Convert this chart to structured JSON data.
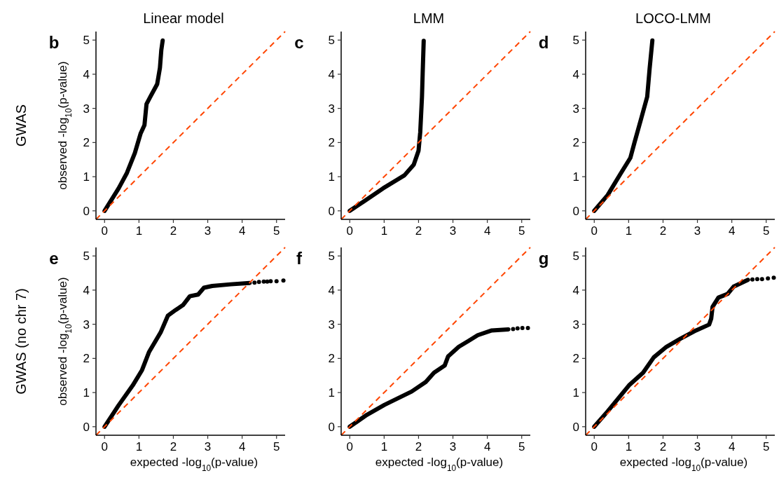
{
  "chart_data": [
    {
      "type": "line",
      "title": "Linear model",
      "ylabel": "observed -log$_{10}$(p-value)",
      "annotations": [
        "b",
        "GWAS"
      ],
      "xlim": [
        -0.25,
        5.25
      ],
      "ylim": [
        -0.25,
        5.25
      ],
      "xticks": [
        0,
        1,
        2,
        3,
        4,
        5
      ],
      "yticks": [
        0,
        1,
        2,
        3,
        4,
        5
      ],
      "series": [
        {
          "color": "#000000",
          "x": [
            0,
            0.41,
            0.65,
            0.88,
            1.05,
            1.16,
            1.22,
            1.33,
            1.53,
            1.61,
            1.65,
            1.69
          ],
          "values": [
            0,
            0.66,
            1.11,
            1.69,
            2.27,
            2.51,
            3.13,
            3.34,
            3.71,
            4.19,
            4.71,
            4.99
          ]
        },
        {
          "color": "#ff4500",
          "line_style": "dashed",
          "x": [
            -0.25,
            5.25
          ],
          "values": [
            -0.25,
            5.25
          ]
        }
      ]
    },
    {
      "type": "line",
      "title": "LMM",
      "annotations": [
        "c"
      ],
      "xlim": [
        -0.25,
        5.25
      ],
      "ylim": [
        -0.25,
        5.25
      ],
      "xticks": [
        0,
        1,
        2,
        3,
        4,
        5
      ],
      "yticks": [
        0,
        1,
        2,
        3,
        4,
        5
      ],
      "series": [
        {
          "color": "#000000",
          "x": [
            0,
            0.43,
            0.97,
            1.59,
            1.86,
            2.0,
            2.05,
            2.1,
            2.12,
            2.15
          ],
          "values": [
            0,
            0.29,
            0.66,
            1.04,
            1.35,
            1.76,
            2.31,
            3.34,
            4.02,
            4.98
          ]
        },
        {
          "color": "#ff4500",
          "line_style": "dashed",
          "x": [
            -0.25,
            5.25
          ],
          "values": [
            -0.25,
            5.25
          ]
        }
      ]
    },
    {
      "type": "line",
      "title": "LOCO-LMM",
      "annotations": [
        "d"
      ],
      "xlim": [
        -0.25,
        5.25
      ],
      "ylim": [
        -0.25,
        5.25
      ],
      "xticks": [
        0,
        1,
        2,
        3,
        4,
        5
      ],
      "yticks": [
        0,
        1,
        2,
        3,
        4,
        5
      ],
      "series": [
        {
          "color": "#000000",
          "x": [
            0,
            0.39,
            0.76,
            1.05,
            1.17,
            1.37,
            1.54,
            1.61,
            1.69
          ],
          "values": [
            0,
            0.46,
            1.08,
            1.55,
            2.0,
            2.72,
            3.34,
            4.16,
            4.99
          ]
        },
        {
          "color": "#ff4500",
          "line_style": "dashed",
          "x": [
            -0.25,
            5.25
          ],
          "values": [
            -0.25,
            5.25
          ]
        }
      ]
    },
    {
      "type": "line",
      "xlabel": "expected -log$_{10}$(p-value)",
      "ylabel": "observed -log$_{10}$(p-value)",
      "annotations": [
        "e",
        "GWAS (no chr 7)"
      ],
      "xlim": [
        -0.25,
        5.25
      ],
      "ylim": [
        -0.25,
        5.25
      ],
      "xticks": [
        0,
        1,
        2,
        3,
        4,
        5
      ],
      "yticks": [
        0,
        1,
        2,
        3,
        4,
        5
      ],
      "series": [
        {
          "color": "#000000",
          "x": [
            0,
            0.41,
            0.82,
            1.09,
            1.29,
            1.63,
            1.84,
            2.07,
            2.28,
            2.48,
            2.72,
            2.89,
            3.13,
            3.67,
            4.22
          ],
          "values": [
            0,
            0.63,
            1.21,
            1.66,
            2.18,
            2.76,
            3.25,
            3.42,
            3.56,
            3.82,
            3.87,
            4.07,
            4.12,
            4.17,
            4.21
          ]
        },
        {
          "type": "scatter",
          "color": "#000000",
          "marker": "circle",
          "x": [
            4.36,
            4.49,
            4.63,
            4.73,
            4.83,
            5.0,
            5.2
          ],
          "values": [
            4.22,
            4.24,
            4.25,
            4.25,
            4.26,
            4.26,
            4.28
          ]
        },
        {
          "color": "#ff4500",
          "line_style": "dashed",
          "x": [
            -0.25,
            5.25
          ],
          "values": [
            -0.25,
            5.25
          ]
        }
      ]
    },
    {
      "type": "line",
      "xlabel": "expected -log$_{10}$(p-value)",
      "annotations": [
        "f"
      ],
      "xlim": [
        -0.25,
        5.25
      ],
      "ylim": [
        -0.25,
        5.25
      ],
      "xticks": [
        0,
        1,
        2,
        3,
        4,
        5
      ],
      "yticks": [
        0,
        1,
        2,
        3,
        4,
        5
      ],
      "series": [
        {
          "color": "#000000",
          "x": [
            0,
            0.5,
            1.01,
            1.8,
            2.21,
            2.45,
            2.76,
            2.86,
            3.17,
            3.45,
            3.72,
            4.13,
            4.61
          ],
          "values": [
            0,
            0.35,
            0.64,
            1.03,
            1.31,
            1.58,
            1.79,
            2.06,
            2.34,
            2.51,
            2.68,
            2.82,
            2.85
          ]
        },
        {
          "type": "scatter",
          "color": "#000000",
          "marker": "circle",
          "x": [
            4.75,
            4.88,
            5.02,
            5.18
          ],
          "values": [
            2.86,
            2.88,
            2.89,
            2.89
          ]
        },
        {
          "color": "#ff4500",
          "line_style": "dashed",
          "x": [
            -0.25,
            5.25
          ],
          "values": [
            -0.25,
            5.25
          ]
        }
      ]
    },
    {
      "type": "line",
      "xlabel": "expected -log$_{10}$(p-value)",
      "annotations": [
        "g"
      ],
      "xlim": [
        -0.25,
        5.25
      ],
      "ylim": [
        -0.25,
        5.25
      ],
      "xticks": [
        0,
        1,
        2,
        3,
        4,
        5
      ],
      "yticks": [
        0,
        1,
        2,
        3,
        4,
        5
      ],
      "series": [
        {
          "color": "#000000",
          "x": [
            0,
            0.39,
            1.01,
            1.42,
            1.73,
            2.1,
            2.51,
            2.96,
            3.34,
            3.4,
            3.44,
            3.61,
            3.88,
            4.05,
            4.47
          ],
          "values": [
            0,
            0.45,
            1.21,
            1.58,
            2.03,
            2.34,
            2.58,
            2.82,
            2.99,
            3.16,
            3.51,
            3.78,
            3.89,
            4.1,
            4.3
          ]
        },
        {
          "type": "scatter",
          "color": "#000000",
          "marker": "circle",
          "x": [
            4.6,
            4.74,
            4.88,
            5.05,
            5.22
          ],
          "values": [
            4.31,
            4.32,
            4.32,
            4.34,
            4.36
          ]
        },
        {
          "color": "#ff4500",
          "line_style": "dashed",
          "x": [
            -0.25,
            5.25
          ],
          "values": [
            -0.25,
            5.25
          ]
        }
      ]
    }
  ]
}
